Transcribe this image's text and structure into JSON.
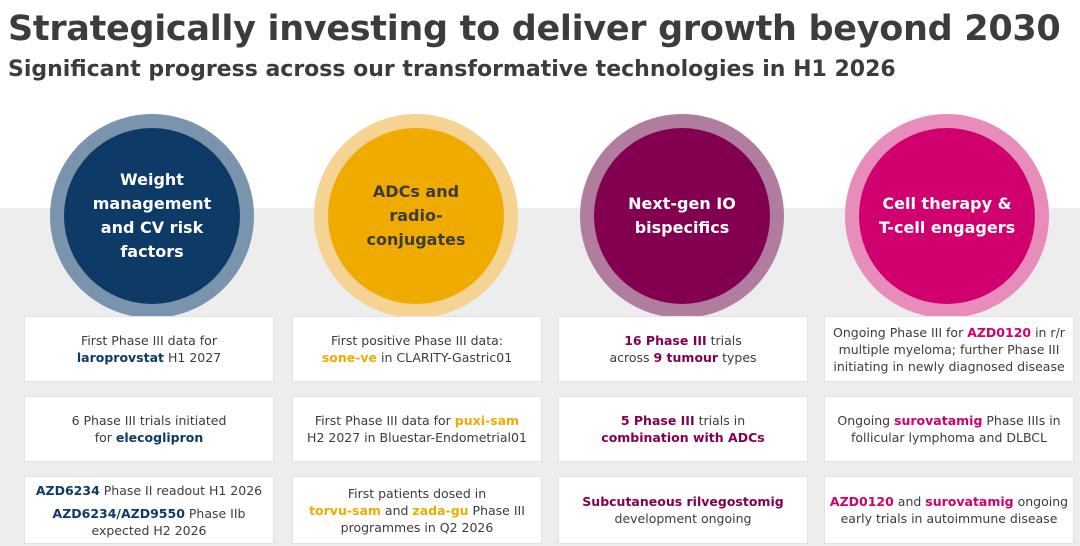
{
  "slide": {
    "title": "Strategically investing to deliver growth beyond 2030",
    "subtitle": "Significant progress across our transformative technologies in H1 2026"
  },
  "colors": {
    "navy": "#0d3a67",
    "navy_ring": "#7a94ae",
    "gold": "#f0ab00",
    "gold_text": "#f0ab00",
    "gold_ring": "#f5d393",
    "plum": "#830051",
    "plum_ring": "#b07d9e",
    "magenta": "#d0006f",
    "magenta_ring": "#e88dbb",
    "grey_band": "#ededed",
    "text": "#3c3c3c"
  },
  "columns": [
    {
      "id": "weight",
      "circle_label": "Weight\nmanagement\nand CV risk\nfactors",
      "circle_color": "#0d3a67",
      "ring_color": "#7a94ae",
      "text_color": "#ffffff",
      "accent": "#0d3a67",
      "cards": [
        {
          "lines": [
            [
              {
                "t": "First Phase III data for"
              }
            ],
            [
              {
                "t": "laroprovstat",
                "hl": true
              },
              {
                "t": " H1 2027"
              }
            ]
          ]
        },
        {
          "lines": [
            [
              {
                "t": "6 Phase III trials initiated"
              }
            ],
            [
              {
                "t": "for "
              },
              {
                "t": "elecoglipron",
                "hl": true
              }
            ]
          ]
        },
        {
          "lines": [
            [
              {
                "t": "AZD6234",
                "hl": true
              },
              {
                "t": " Phase II readout H1 2026"
              }
            ],
            "gap",
            [
              {
                "t": "AZD6234/AZD9550",
                "hl": true
              },
              {
                "t": " Phase IIb"
              }
            ],
            [
              {
                "t": "expected H2 2026"
              }
            ]
          ]
        }
      ]
    },
    {
      "id": "adc",
      "circle_label": "ADCs and\nradio-\nconjugates",
      "circle_color": "#f0ab00",
      "ring_color": "#f5d393",
      "text_color": "#3c3c3c",
      "accent": "#f0ab00",
      "cards": [
        {
          "lines": [
            [
              {
                "t": "First positive Phase III data:"
              }
            ],
            [
              {
                "t": "sone-ve",
                "hl": true
              },
              {
                "t": " in CLARITY-Gastric01"
              }
            ]
          ]
        },
        {
          "lines": [
            [
              {
                "t": "First Phase III data for "
              },
              {
                "t": "puxi-sam",
                "hl": true
              }
            ],
            [
              {
                "t": "H2 2027 in Bluestar-Endometrial01"
              }
            ]
          ]
        },
        {
          "lines": [
            [
              {
                "t": "First patients dosed in"
              }
            ],
            [
              {
                "t": "torvu-sam",
                "hl": true
              },
              {
                "t": " and "
              },
              {
                "t": "zada-gu",
                "hl": true
              },
              {
                "t": " Phase III"
              }
            ],
            [
              {
                "t": "programmes in Q2 2026"
              }
            ]
          ]
        }
      ]
    },
    {
      "id": "io",
      "circle_label": "Next-gen IO\nbispecifics",
      "circle_color": "#830051",
      "ring_color": "#b07d9e",
      "text_color": "#ffffff",
      "accent": "#830051",
      "cards": [
        {
          "lines": [
            [
              {
                "t": "16 Phase III",
                "hl": true
              },
              {
                "t": " trials"
              }
            ],
            [
              {
                "t": "across "
              },
              {
                "t": "9 tumour",
                "hl": true
              },
              {
                "t": " types"
              }
            ]
          ]
        },
        {
          "lines": [
            [
              {
                "t": "5 Phase III",
                "hl": true
              },
              {
                "t": " trials in"
              }
            ],
            [
              {
                "t": "combination with ADCs",
                "hl": true
              }
            ]
          ]
        },
        {
          "lines": [
            [
              {
                "t": "Subcutaneous rilvegostomig",
                "hl": true
              }
            ],
            [
              {
                "t": "development ongoing"
              }
            ]
          ]
        }
      ]
    },
    {
      "id": "cell",
      "circle_label": "Cell therapy &\nT-cell engagers",
      "circle_color": "#d0006f",
      "ring_color": "#e88dbb",
      "text_color": "#ffffff",
      "accent": "#d0006f",
      "cards": [
        {
          "lines": [
            [
              {
                "t": "Ongoing Phase III for "
              },
              {
                "t": "AZD0120",
                "hl": true
              },
              {
                "t": " in r/r"
              }
            ],
            [
              {
                "t": "multiple myeloma; further Phase III"
              }
            ],
            [
              {
                "t": "initiating in newly diagnosed disease"
              }
            ]
          ]
        },
        {
          "lines": [
            [
              {
                "t": "Ongoing "
              },
              {
                "t": "surovatamig",
                "hl": true
              },
              {
                "t": " Phase IIIs in"
              }
            ],
            [
              {
                "t": "follicular lymphoma and DLBCL"
              }
            ]
          ]
        },
        {
          "lines": [
            [
              {
                "t": "AZD0120",
                "hl": true
              },
              {
                "t": " and "
              },
              {
                "t": "surovatamig",
                "hl": true
              },
              {
                "t": " ongoing"
              }
            ],
            [
              {
                "t": "early trials in autoimmune disease"
              }
            ]
          ]
        }
      ]
    }
  ]
}
